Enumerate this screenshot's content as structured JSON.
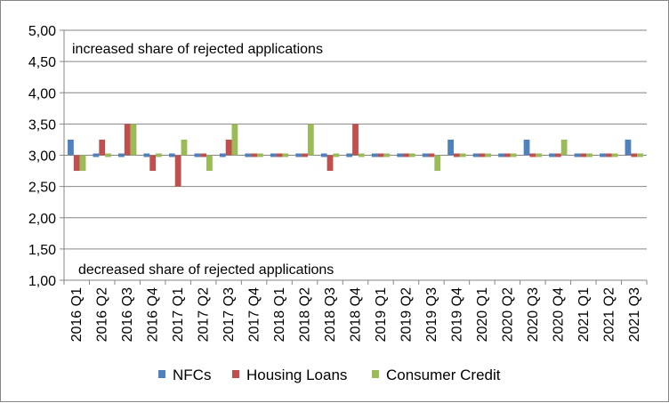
{
  "chart_data": {
    "type": "bar",
    "categories": [
      "2016 Q1",
      "2016 Q2",
      "2016 Q3",
      "2016 Q4",
      "2017 Q1",
      "2017 Q2",
      "2017 Q3",
      "2017 Q4",
      "2018 Q1",
      "2018 Q2",
      "2018 Q3",
      "2018 Q4",
      "2019 Q1",
      "2019 Q2",
      "2019 Q3",
      "2019 Q4",
      "2020 Q1",
      "2020 Q2",
      "2020 Q3",
      "2020 Q4",
      "2021 Q1",
      "2021 Q2",
      "2021 Q3"
    ],
    "series": [
      {
        "name": "NFCs",
        "color": "#4F81BD",
        "values": [
          3.25,
          3.0,
          3.0,
          3.0,
          3.0,
          3.0,
          3.0,
          3.0,
          3.0,
          3.0,
          3.0,
          3.0,
          3.0,
          3.0,
          3.0,
          3.25,
          3.0,
          3.0,
          3.25,
          3.0,
          3.0,
          3.0,
          3.25
        ]
      },
      {
        "name": "Housing Loans",
        "color": "#C0504D",
        "values": [
          2.75,
          3.25,
          3.5,
          2.75,
          2.5,
          3.0,
          3.25,
          3.0,
          3.0,
          3.0,
          2.75,
          3.5,
          3.0,
          3.0,
          3.0,
          3.0,
          3.0,
          3.0,
          3.0,
          3.0,
          3.0,
          3.0,
          3.0
        ]
      },
      {
        "name": "Consumer Credit",
        "color": "#9BBB59",
        "values": [
          2.75,
          3.0,
          3.5,
          3.0,
          3.25,
          2.75,
          3.5,
          3.0,
          3.0,
          3.5,
          3.0,
          3.0,
          3.0,
          3.0,
          2.75,
          3.0,
          3.0,
          3.0,
          3.0,
          3.25,
          3.0,
          3.0,
          3.0
        ]
      }
    ],
    "ylim": [
      1.0,
      5.0
    ],
    "y_ticks": [
      "1,00",
      "1,50",
      "2,00",
      "2,50",
      "3,00",
      "3,50",
      "4,00",
      "4,50",
      "5,00"
    ],
    "baseline": 3.0,
    "grid": true,
    "legend_position": "bottom",
    "annotations": {
      "top": "increased  share of rejected applications",
      "bottom": "decreased share of rejected applications"
    }
  }
}
